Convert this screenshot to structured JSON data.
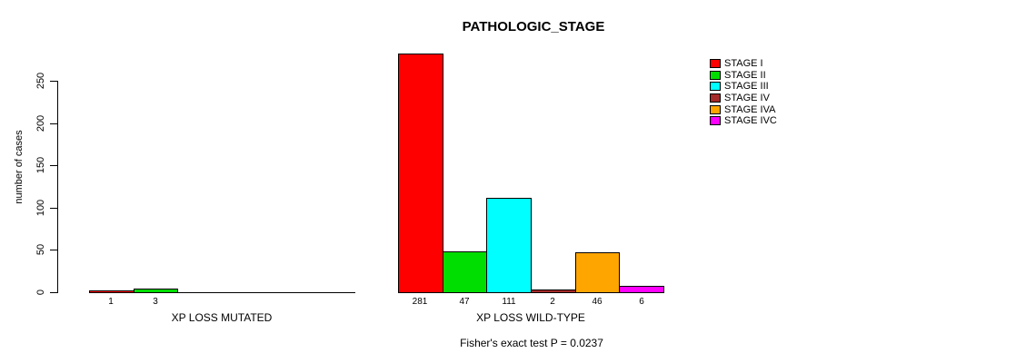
{
  "chart_data": {
    "type": "bar",
    "title": "PATHOLOGIC_STAGE",
    "ylabel": "number of cases",
    "yticks": [
      0,
      50,
      100,
      150,
      200,
      250
    ],
    "ylim": [
      0,
      281
    ],
    "grid": false,
    "legend_position": "top-right",
    "annotation": "Fisher's exact test P = 0.0237",
    "categories": [
      "XP LOSS MUTATED",
      "XP LOSS WILD-TYPE"
    ],
    "stages": [
      {
        "label": "STAGE I",
        "color": "#ff0000"
      },
      {
        "label": "STAGE II",
        "color": "#00dd00"
      },
      {
        "label": "STAGE III",
        "color": "#00ffff"
      },
      {
        "label": "STAGE IV",
        "color": "#a52a2a"
      },
      {
        "label": "STAGE IVA",
        "color": "#ffa500"
      },
      {
        "label": "STAGE IVC",
        "color": "#ff00ff"
      }
    ],
    "groups": [
      {
        "label": "XP LOSS MUTATED",
        "values": [
          1,
          3,
          0,
          0,
          0,
          0
        ]
      },
      {
        "label": "XP LOSS WILD-TYPE",
        "values": [
          281,
          47,
          111,
          2,
          46,
          6
        ]
      }
    ]
  }
}
